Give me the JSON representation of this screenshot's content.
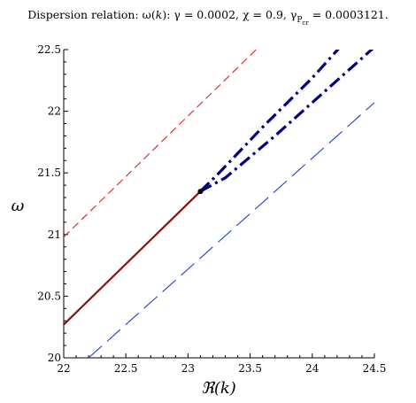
{
  "chart_data": {
    "type": "line",
    "title": {
      "lhs": "Dispersion relation:",
      "omega": "ω(",
      "k": "k",
      "close": ")",
      "gamma_label": "γ",
      "gamma_value": "= 0.0002,",
      "chi_label": "χ",
      "chi_value": "= 0.9,",
      "gpcr_label": "γ",
      "gpcr_sub_main": "P",
      "gpcr_sub_sub": "cr",
      "gpcr_value": "= 0.0003121."
    },
    "xlabel": "ℜ(k)",
    "ylabel": "ω",
    "xlim": [
      22,
      24.5
    ],
    "ylim": [
      20,
      22.5
    ],
    "x_ticks": [
      "22",
      "22.5",
      "23",
      "23.5",
      "24",
      "24.5"
    ],
    "y_ticks": [
      "20",
      "20.5",
      "21",
      "21.5",
      "22",
      "22.5"
    ],
    "grid": false,
    "series": [
      {
        "style": "dash",
        "color": "#dd2222",
        "points": [
          [
            22,
            20.98
          ],
          [
            23.6,
            22.55
          ]
        ]
      },
      {
        "style": "longdash",
        "color": "#1f3fd0",
        "points": [
          [
            22.2,
            20.0
          ],
          [
            24.5,
            22.07
          ]
        ]
      },
      {
        "style": "solid",
        "color": "#8b0f0f",
        "points": [
          [
            22,
            20.27
          ],
          [
            23.1,
            21.35
          ]
        ]
      },
      {
        "style": "dashdot",
        "color": "#000080",
        "points": [
          [
            23.1,
            21.35
          ],
          [
            23.25,
            21.5
          ],
          [
            23.6,
            21.87
          ],
          [
            24.0,
            22.27
          ],
          [
            24.25,
            22.55
          ]
        ]
      },
      {
        "style": "dashdot",
        "color": "#000080",
        "points": [
          [
            23.1,
            21.35
          ],
          [
            23.3,
            21.46
          ],
          [
            23.7,
            21.8
          ],
          [
            24.1,
            22.16
          ],
          [
            24.5,
            22.52
          ]
        ]
      }
    ],
    "markers": [
      {
        "x": 23.1,
        "y": 21.35,
        "color": "#000000"
      }
    ]
  },
  "icons": {
    "marker_point": "filled-circle"
  }
}
